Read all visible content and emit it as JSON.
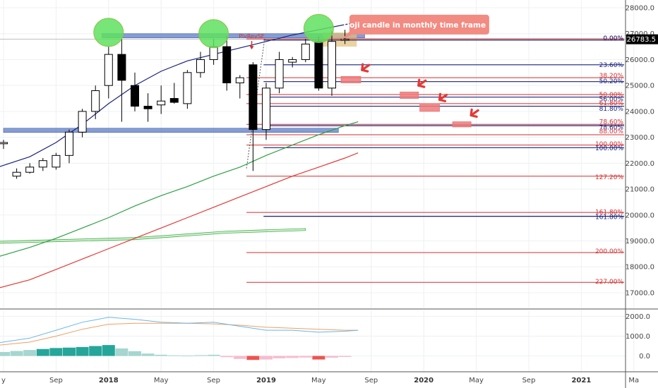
{
  "chart_data": {
    "type": "candlestick",
    "y_range": [
      16400,
      28300
    ],
    "x_range_months": [
      -1,
      50
    ],
    "price_ticks": [
      17000,
      18000,
      19000,
      20000,
      21000,
      22000,
      23000,
      24000,
      25000,
      26000,
      27000,
      28000
    ],
    "price_tick_labels": [
      "17000.0",
      "18000.0",
      "19000.0",
      "20000.0",
      "21000.0",
      "22000.0",
      "23000.0",
      "24000.0",
      "25000.0",
      "26000.0",
      "27000.0",
      "28000.0"
    ],
    "current_price": 26783.5,
    "current_price_label": "26783.5",
    "x_ticks": [
      {
        "m": 0,
        "label": "y",
        "bold": false
      },
      {
        "m": 4,
        "label": "Sep",
        "bold": false
      },
      {
        "m": 8,
        "label": "2018",
        "bold": true
      },
      {
        "m": 12,
        "label": "May",
        "bold": false
      },
      {
        "m": 16,
        "label": "Sep",
        "bold": false
      },
      {
        "m": 20,
        "label": "2019",
        "bold": true
      },
      {
        "m": 24,
        "label": "May",
        "bold": false
      },
      {
        "m": 28,
        "label": "Sep",
        "bold": false
      },
      {
        "m": 32,
        "label": "2020",
        "bold": true
      },
      {
        "m": 36,
        "label": "May",
        "bold": false
      },
      {
        "m": 40,
        "label": "Sep",
        "bold": false
      },
      {
        "m": 44,
        "label": "2021",
        "bold": true
      },
      {
        "m": 48,
        "label": "Ma",
        "bold": false
      }
    ],
    "candles": [
      {
        "m": 0,
        "o": 22750,
        "h": 22900,
        "l": 22550,
        "c": 22800
      },
      {
        "m": 1,
        "o": 21500,
        "h": 21800,
        "l": 21400,
        "c": 21650
      },
      {
        "m": 2,
        "o": 21650,
        "h": 22000,
        "l": 21600,
        "c": 21850
      },
      {
        "m": 3,
        "o": 21850,
        "h": 22200,
        "l": 21700,
        "c": 22100
      },
      {
        "m": 4,
        "o": 21850,
        "h": 22400,
        "l": 21750,
        "c": 22300
      },
      {
        "m": 5,
        "o": 22300,
        "h": 23300,
        "l": 22000,
        "c": 23200
      },
      {
        "m": 6,
        "o": 23200,
        "h": 24100,
        "l": 23000,
        "c": 24000
      },
      {
        "m": 7,
        "o": 24000,
        "h": 25000,
        "l": 23700,
        "c": 24800
      },
      {
        "m": 8,
        "o": 25000,
        "h": 26500,
        "l": 24500,
        "c": 26200
      },
      {
        "m": 9,
        "o": 26200,
        "h": 26800,
        "l": 23600,
        "c": 25200
      },
      {
        "m": 10,
        "o": 25000,
        "h": 25500,
        "l": 24000,
        "c": 24200
      },
      {
        "m": 11,
        "o": 24200,
        "h": 24700,
        "l": 23600,
        "c": 24100
      },
      {
        "m": 12,
        "o": 24250,
        "h": 25000,
        "l": 23900,
        "c": 24400
      },
      {
        "m": 13,
        "o": 24500,
        "h": 25100,
        "l": 24300,
        "c": 24350
      },
      {
        "m": 14,
        "o": 24300,
        "h": 25600,
        "l": 24100,
        "c": 25500
      },
      {
        "m": 15,
        "o": 25500,
        "h": 26300,
        "l": 25300,
        "c": 26000
      },
      {
        "m": 16,
        "o": 26000,
        "h": 26800,
        "l": 25800,
        "c": 26500
      },
      {
        "m": 17,
        "o": 26500,
        "h": 26900,
        "l": 24800,
        "c": 25100
      },
      {
        "m": 18,
        "o": 25100,
        "h": 25400,
        "l": 24500,
        "c": 25300
      },
      {
        "m": 19,
        "o": 25800,
        "h": 25900,
        "l": 21700,
        "c": 23300
      },
      {
        "m": 20,
        "o": 23300,
        "h": 25100,
        "l": 22900,
        "c": 24900
      },
      {
        "m": 21,
        "o": 24900,
        "h": 26300,
        "l": 24700,
        "c": 26000
      },
      {
        "m": 22,
        "o": 25900,
        "h": 26100,
        "l": 25700,
        "c": 26000
      },
      {
        "m": 23,
        "o": 26000,
        "h": 26800,
        "l": 25900,
        "c": 26600
      },
      {
        "m": 24,
        "o": 26700,
        "h": 26900,
        "l": 24800,
        "c": 24900
      },
      {
        "m": 25,
        "o": 24900,
        "h": 27100,
        "l": 24600,
        "c": 26700
      },
      {
        "m": 26,
        "o": 26780,
        "h": 27150,
        "l": 26600,
        "c": 26783
      }
    ],
    "overlay_lines": [
      {
        "name": "",
        "color": "#1a237e",
        "points": [
          [
            -1,
            21750
          ],
          [
            2,
            22250
          ],
          [
            4,
            22800
          ],
          [
            6,
            23500
          ],
          [
            8,
            24300
          ],
          [
            10,
            25000
          ],
          [
            12,
            25550
          ],
          [
            14,
            25950
          ],
          [
            16,
            26200
          ],
          [
            18,
            26450
          ],
          [
            20,
            26700
          ],
          [
            22,
            26950
          ],
          [
            24,
            27150
          ],
          [
            26,
            27350
          ],
          [
            27,
            27450
          ]
        ]
      },
      {
        "name": "",
        "color": "#2ea043",
        "points": [
          [
            -1,
            18300
          ],
          [
            2,
            18750
          ],
          [
            4,
            19100
          ],
          [
            6,
            19500
          ],
          [
            8,
            19900
          ],
          [
            10,
            20350
          ],
          [
            12,
            20750
          ],
          [
            14,
            21100
          ],
          [
            16,
            21500
          ],
          [
            18,
            21850
          ],
          [
            20,
            22300
          ],
          [
            22,
            22700
          ],
          [
            24,
            23100
          ],
          [
            26,
            23450
          ],
          [
            27,
            23600
          ]
        ]
      },
      {
        "name": "",
        "color": "#e53935",
        "points": [
          [
            -1,
            17100
          ],
          [
            2,
            17500
          ],
          [
            4,
            17900
          ],
          [
            6,
            18300
          ],
          [
            8,
            18700
          ],
          [
            10,
            19100
          ],
          [
            12,
            19500
          ],
          [
            14,
            19900
          ],
          [
            16,
            20300
          ],
          [
            18,
            20700
          ],
          [
            20,
            21100
          ],
          [
            22,
            21500
          ],
          [
            24,
            21850
          ],
          [
            26,
            22200
          ],
          [
            27,
            22400
          ]
        ]
      }
    ],
    "ma200": {
      "color": "#7bd87b",
      "points": [
        [
          -1,
          18850
        ],
        [
          24,
          19100
        ]
      ]
    },
    "sma200_band": {
      "color": "#7bd87b",
      "points": [
        [
          -1,
          18900
        ],
        [
          10,
          19050
        ],
        [
          17,
          19300
        ],
        [
          23,
          19400
        ]
      ],
      "upper_offset": 80
    },
    "fib_levels_red": [
      {
        "pct": "0.00%",
        "price": 26800
      },
      {
        "pct": "38.20%",
        "price": 25300
      },
      {
        "pct": "50.00%",
        "price": 24650
      },
      {
        "pct": "61.80%",
        "price": 24300
      },
      {
        "pct": "78.60%",
        "price": 23500
      },
      {
        "pct": "88.00%",
        "price": 23100
      },
      {
        "pct": "100.00%",
        "price": 22700
      },
      {
        "pct": "127.20%",
        "price": 21500
      },
      {
        "pct": "161.80%",
        "price": 20100
      },
      {
        "pct": "200.00%",
        "price": 18550
      },
      {
        "pct": "227.00%",
        "price": 17400
      }
    ],
    "fib_levels_blue": [
      {
        "pct": "0.00%",
        "price": 26750
      },
      {
        "pct": "23.60%",
        "price": 25800
      },
      {
        "pct": "38.20%",
        "price": 25150
      },
      {
        "pct": "50.00%",
        "price": 24550
      },
      {
        "pct": "61.80%",
        "price": 24200
      },
      {
        "pct": "78.60%",
        "price": 23450
      },
      {
        "pct": "100.00%",
        "price": 22600
      },
      {
        "pct": "161.80%",
        "price": 19950
      }
    ],
    "fib_label_price": {
      "0.00%": 26830,
      "23.60%": 25800,
      "38.20%": 25380,
      "50.20%": 25170,
      "50.00%": 24650,
      "56.00%": 24470,
      "61.80%": 24320,
      "81.80%": 24100,
      "78.60%": 23600,
      "78.60b%": 23380,
      "88.00%": 23230,
      "100.00%": 22750,
      "100.00b%": 22580,
      "127.20%": 21470,
      "161.80%": 20120,
      "161.80b%": 19930,
      "200.00%": 18600,
      "227.00%": 17430
    },
    "fib_label_list": [
      {
        "text": "0.00%",
        "key": "0.00%",
        "color": "#d32f2f"
      },
      {
        "text": "0.00%",
        "key": "0.00%",
        "color": "#1a237e"
      },
      {
        "text": "23.60%",
        "key": "23.60%",
        "color": "#1a237e"
      },
      {
        "text": "38.20%",
        "key": "38.20%",
        "color": "#d32f2f"
      },
      {
        "text": "50.20%",
        "key": "50.20%",
        "color": "#1a237e"
      },
      {
        "text": "50.00%",
        "key": "50.00%",
        "color": "#d32f2f"
      },
      {
        "text": "56.00%",
        "key": "56.00%",
        "color": "#1a237e"
      },
      {
        "text": "61.80%",
        "key": "61.80%",
        "color": "#d32f2f"
      },
      {
        "text": "81.80%",
        "key": "81.80%",
        "color": "#1a237e"
      },
      {
        "text": "78.60%",
        "key": "78.60%",
        "color": "#d32f2f"
      },
      {
        "text": "78.60%",
        "key": "78.60b%",
        "color": "#1a237e"
      },
      {
        "text": "88.00%",
        "key": "88.00%",
        "color": "#d32f2f"
      },
      {
        "text": "100.00%",
        "key": "100.00%",
        "color": "#d32f2f"
      },
      {
        "text": "100.00%",
        "key": "100.00b%",
        "color": "#1a237e"
      },
      {
        "text": "127.20%",
        "key": "127.20%",
        "color": "#d32f2f"
      },
      {
        "text": "161.80%",
        "key": "161.80%",
        "color": "#d32f2f"
      },
      {
        "text": "161.80%",
        "key": "161.80b%",
        "color": "#1a237e"
      },
      {
        "text": "200.00%",
        "key": "200.00%",
        "color": "#d32f2f"
      },
      {
        "text": "227.00%",
        "key": "227.00%",
        "color": "#d32f2f"
      }
    ],
    "horizontal_zones": [
      {
        "name": "top-resistance-zone",
        "m_start": 7.5,
        "m_end": 27.5,
        "price_low": 26850,
        "price_high": 27000,
        "color": "#5c7cc4"
      },
      {
        "name": "mid-support-zone",
        "m_start": 0,
        "m_end": 25.5,
        "price_low": 23250,
        "price_high": 23350,
        "color": "#5c7cc4"
      }
    ],
    "target_boxes": [
      {
        "m_start": 25.7,
        "m_end": 27.2,
        "price_low": 25100,
        "price_high": 25350
      },
      {
        "m_start": 30.2,
        "m_end": 31.6,
        "price_low": 24500,
        "price_high": 24750
      },
      {
        "m_start": 31.7,
        "m_end": 33.2,
        "price_low": 24000,
        "price_high": 24300
      },
      {
        "m_start": 34.2,
        "m_end": 35.6,
        "price_low": 23400,
        "price_high": 23600
      }
    ],
    "highlight_box": {
      "m_start": 24.3,
      "m_end": 26.9,
      "price_low": 26500,
      "price_high": 27050,
      "color": "#e2c07a"
    },
    "circles": [
      {
        "m": 8,
        "price": 27050
      },
      {
        "m": 16,
        "price": 27000
      },
      {
        "m": 24,
        "price": 27200
      }
    ],
    "arrows": [
      {
        "m": 27.3,
        "price": 25600
      },
      {
        "m": 31.6,
        "price": 25000
      },
      {
        "m": 33.2,
        "price": 24450
      },
      {
        "m": 35.6,
        "price": 23850
      }
    ],
    "annotation_text": "Doji candle in monthly time frame !!",
    "annotation_anchor": {
      "m": 25.8,
      "price": 27350
    },
    "pivot_label": "PivRevSE",
    "pivot_anchor": {
      "m": 18.9,
      "price": 26500
    },
    "indicator": {
      "y_range": [
        -800,
        2300
      ],
      "ticks": [
        0,
        1000,
        2000
      ],
      "tick_labels": [
        "0.0",
        "1000.0",
        "2000.0"
      ],
      "macd_line": {
        "color": "#6ab7e8",
        "points": [
          [
            -1,
            600
          ],
          [
            2,
            900
          ],
          [
            4,
            1300
          ],
          [
            6,
            1700
          ],
          [
            8,
            1950
          ],
          [
            10,
            1850
          ],
          [
            12,
            1700
          ],
          [
            14,
            1650
          ],
          [
            16,
            1700
          ],
          [
            18,
            1500
          ],
          [
            20,
            1300
          ],
          [
            22,
            1300
          ],
          [
            24,
            1200
          ],
          [
            26,
            1250
          ],
          [
            27,
            1300
          ]
        ]
      },
      "signal_line": {
        "color": "#f0a060",
        "points": [
          [
            -1,
            500
          ],
          [
            2,
            700
          ],
          [
            4,
            1000
          ],
          [
            6,
            1350
          ],
          [
            8,
            1600
          ],
          [
            10,
            1650
          ],
          [
            12,
            1650
          ],
          [
            14,
            1650
          ],
          [
            16,
            1620
          ],
          [
            18,
            1550
          ],
          [
            20,
            1450
          ],
          [
            22,
            1400
          ],
          [
            24,
            1350
          ],
          [
            26,
            1300
          ],
          [
            27,
            1300
          ]
        ]
      },
      "histogram": [
        {
          "m": -1,
          "v": 150
        },
        {
          "m": 0,
          "v": 200
        },
        {
          "m": 1,
          "v": 250
        },
        {
          "m": 2,
          "v": 300
        },
        {
          "m": 3,
          "v": 350
        },
        {
          "m": 4,
          "v": 400
        },
        {
          "m": 5,
          "v": 420
        },
        {
          "m": 6,
          "v": 450
        },
        {
          "m": 7,
          "v": 500
        },
        {
          "m": 8,
          "v": 550
        },
        {
          "m": 9,
          "v": 380
        },
        {
          "m": 10,
          "v": 240
        },
        {
          "m": 11,
          "v": 120
        },
        {
          "m": 12,
          "v": 60
        },
        {
          "m": 13,
          "v": 30
        },
        {
          "m": 14,
          "v": 20
        },
        {
          "m": 15,
          "v": 40
        },
        {
          "m": 16,
          "v": 60
        },
        {
          "m": 17,
          "v": -60
        },
        {
          "m": 18,
          "v": -150
        },
        {
          "m": 19,
          "v": -200
        },
        {
          "m": 20,
          "v": -180
        },
        {
          "m": 21,
          "v": -120
        },
        {
          "m": 22,
          "v": -100
        },
        {
          "m": 23,
          "v": -80
        },
        {
          "m": 24,
          "v": -180
        },
        {
          "m": 25,
          "v": -90
        },
        {
          "m": 26,
          "v": -50
        }
      ]
    }
  }
}
